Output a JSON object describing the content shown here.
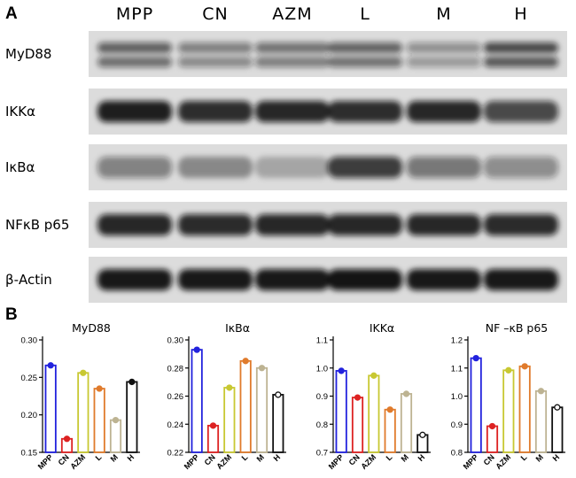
{
  "panel_a": {
    "letter": "A",
    "lanes": [
      "MPP",
      "CN",
      "AZM",
      "L",
      "M",
      "H"
    ],
    "blots": [
      {
        "label": "MyD88",
        "intensity": [
          0.72,
          0.55,
          0.62,
          0.7,
          0.45,
          0.85
        ],
        "double": true
      },
      {
        "label": "IKKα",
        "intensity": [
          0.92,
          0.85,
          0.88,
          0.85,
          0.88,
          0.72
        ],
        "double": false
      },
      {
        "label": "IκBα",
        "intensity": [
          0.45,
          0.38,
          0.25,
          0.78,
          0.5,
          0.4
        ],
        "double": false
      },
      {
        "label": "NFκB p65",
        "intensity": [
          0.88,
          0.86,
          0.88,
          0.88,
          0.88,
          0.86
        ],
        "double": false
      },
      {
        "label": "β-Actin",
        "intensity": [
          0.95,
          0.95,
          0.95,
          0.97,
          0.95,
          0.95
        ],
        "double": false
      }
    ]
  },
  "panel_b": {
    "letter": "B"
  },
  "chart_data": [
    {
      "type": "bar",
      "title": "MyD88",
      "categories": [
        "MPP",
        "CN",
        "AZM",
        "L",
        "M",
        "H"
      ],
      "values": [
        0.266,
        0.168,
        0.256,
        0.235,
        0.193,
        0.244
      ],
      "ylim": [
        0.15,
        0.3
      ],
      "yticks": [
        "0.15",
        "0.20",
        "0.25",
        "0.30"
      ],
      "markers": [
        "dot",
        "dot",
        "dot",
        "dot",
        "dot",
        "dot"
      ]
    },
    {
      "type": "bar",
      "title": "IκBα",
      "categories": [
        "MPP",
        "CN",
        "AZM",
        "L",
        "M",
        "H"
      ],
      "values": [
        0.293,
        0.239,
        0.266,
        0.285,
        0.28,
        0.261
      ],
      "ylim": [
        0.22,
        0.3
      ],
      "yticks": [
        "0.22",
        "0.24",
        "0.26",
        "0.28",
        "0.30"
      ],
      "markers": [
        "dot",
        "dot",
        "dot",
        "dot",
        "dot",
        "open"
      ]
    },
    {
      "type": "bar",
      "title": "IKKα",
      "categories": [
        "MPP",
        "CN",
        "AZM",
        "L",
        "M",
        "H"
      ],
      "values": [
        0.99,
        0.895,
        0.973,
        0.852,
        0.908,
        0.762
      ],
      "ylim": [
        0.7,
        1.1
      ],
      "yticks": [
        "0.7",
        "0.8",
        "0.9",
        "1.0",
        "1.1"
      ],
      "markers": [
        "dot",
        "dot",
        "dot",
        "dot",
        "dot",
        "open"
      ]
    },
    {
      "type": "bar",
      "title": "NF –κB p65",
      "categories": [
        "MPP",
        "CN",
        "AZM",
        "L",
        "M",
        "H"
      ],
      "values": [
        1.135,
        0.893,
        1.092,
        1.106,
        1.018,
        0.96
      ],
      "ylim": [
        0.8,
        1.2
      ],
      "yticks": [
        "0.8",
        "0.9",
        "1.0",
        "1.1",
        "1.2"
      ],
      "markers": [
        "dot",
        "dot",
        "dot",
        "dot",
        "dot",
        "open"
      ]
    }
  ],
  "colors": {
    "bars": [
      "#2222dd",
      "#dd2222",
      "#c8c832",
      "#e07b2c",
      "#bdb392",
      "#111111"
    ],
    "blot_background": "#dcdcdc",
    "band": "#111111"
  }
}
